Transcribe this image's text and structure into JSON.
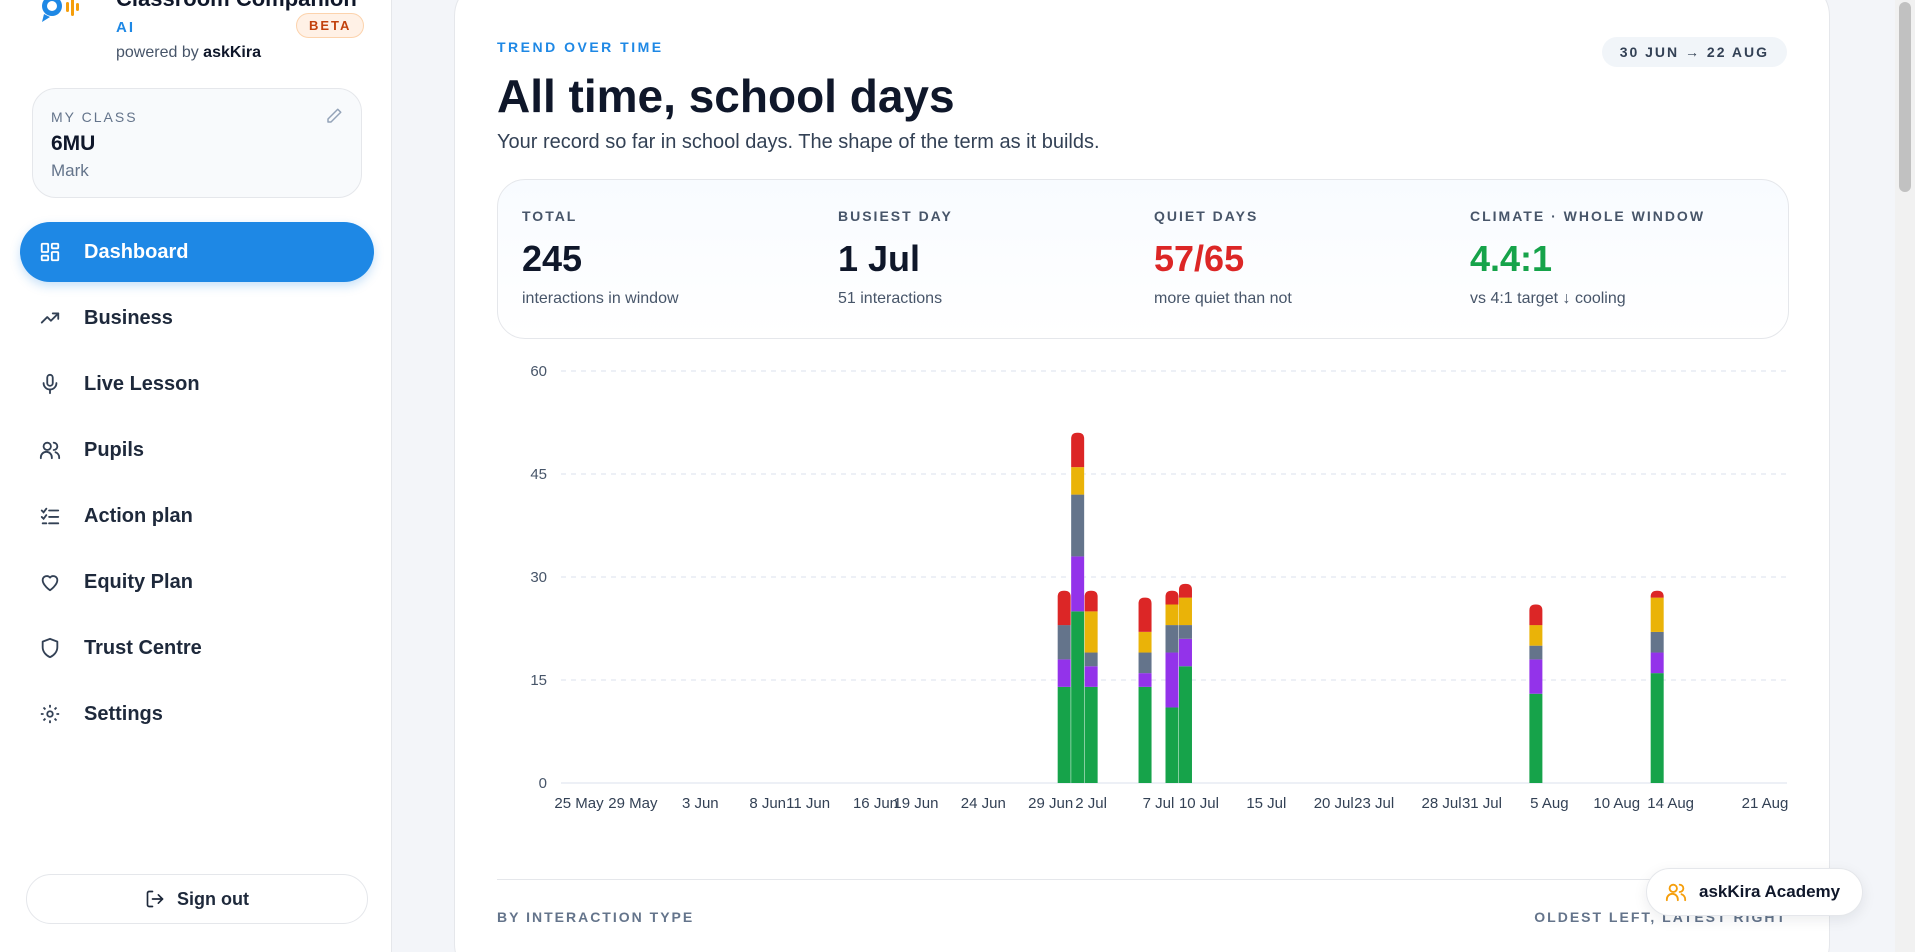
{
  "brand": {
    "title": "Classroom Companion",
    "ai_label": "AI",
    "beta": "BETA",
    "powered_prefix": "powered by",
    "powered_name": "askKira"
  },
  "class_card": {
    "label": "MY CLASS",
    "name": "6MU",
    "teacher": "Mark"
  },
  "nav": [
    {
      "label": "Dashboard",
      "icon": "dashboard-icon",
      "active": true
    },
    {
      "label": "Business",
      "icon": "trending-icon"
    },
    {
      "label": "Live Lesson",
      "icon": "microphone-icon"
    },
    {
      "label": "Pupils",
      "icon": "users-icon"
    },
    {
      "label": "Action plan",
      "icon": "checklist-icon"
    },
    {
      "label": "Equity Plan",
      "icon": "heart-icon"
    },
    {
      "label": "Trust Centre",
      "icon": "shield-icon"
    },
    {
      "label": "Settings",
      "icon": "gear-icon"
    }
  ],
  "signout": "Sign out",
  "header": {
    "eyebrow": "TREND OVER TIME",
    "range": "30 JUN → 22 AUG",
    "title": "All time, school days",
    "subtitle": "Your record so far in school days. The shape of the term as it builds."
  },
  "stats": [
    {
      "label": "TOTAL",
      "value": "245",
      "note": "interactions in window",
      "color": "#0f172a"
    },
    {
      "label": "BUSIEST DAY",
      "value": "1 Jul",
      "note": "51 interactions",
      "color": "#0f172a"
    },
    {
      "label": "QUIET DAYS",
      "value": "57/65",
      "note": "more quiet than not",
      "color": "#dc2626"
    },
    {
      "label": "CLIMATE · WHOLE WINDOW",
      "value": "4.4:1",
      "note": "vs 4:1 target ↓ cooling",
      "color": "#16a34a"
    }
  ],
  "chart_data": {
    "type": "bar",
    "stacked": true,
    "ylim": [
      0,
      60
    ],
    "yticks": [
      0,
      15,
      30,
      45,
      60
    ],
    "x_tick_labels": [
      "25 May",
      "29 May",
      "3 Jun",
      "8 Jun",
      "11 Jun",
      "16 Jun",
      "19 Jun",
      "24 Jun",
      "29 Jun",
      "2 Jul",
      "7 Jul",
      "10 Jul",
      "15 Jul",
      "20 Jul",
      "23 Jul",
      "28 Jul",
      "31 Jul",
      "5 Aug",
      "10 Aug",
      "14 Aug",
      "21 Aug"
    ],
    "grid": true,
    "colors": [
      "#16a34a",
      "#9333ea",
      "#64748b",
      "#eab308",
      "#dc2626"
    ],
    "bars": [
      {
        "date": "30 Jun",
        "values": [
          14,
          4,
          5,
          0,
          5
        ]
      },
      {
        "date": "1 Jul",
        "values": [
          25,
          8,
          9,
          4,
          5
        ]
      },
      {
        "date": "2 Jul",
        "values": [
          14,
          3,
          2,
          6,
          3
        ]
      },
      {
        "date": "6 Jul",
        "values": [
          14,
          2,
          3,
          3,
          5
        ]
      },
      {
        "date": "8 Jul",
        "values": [
          11,
          8,
          4,
          3,
          2
        ]
      },
      {
        "date": "9 Jul",
        "values": [
          17,
          4,
          2,
          4,
          2
        ]
      },
      {
        "date": "4 Aug",
        "values": [
          13,
          5,
          2,
          3,
          3
        ]
      },
      {
        "date": "13 Aug",
        "values": [
          16,
          3,
          3,
          5,
          1
        ]
      }
    ]
  },
  "section": {
    "by_type": "BY INTERACTION TYPE",
    "order": "OLDEST LEFT, LATEST RIGHT"
  },
  "academy": "askKira Academy"
}
